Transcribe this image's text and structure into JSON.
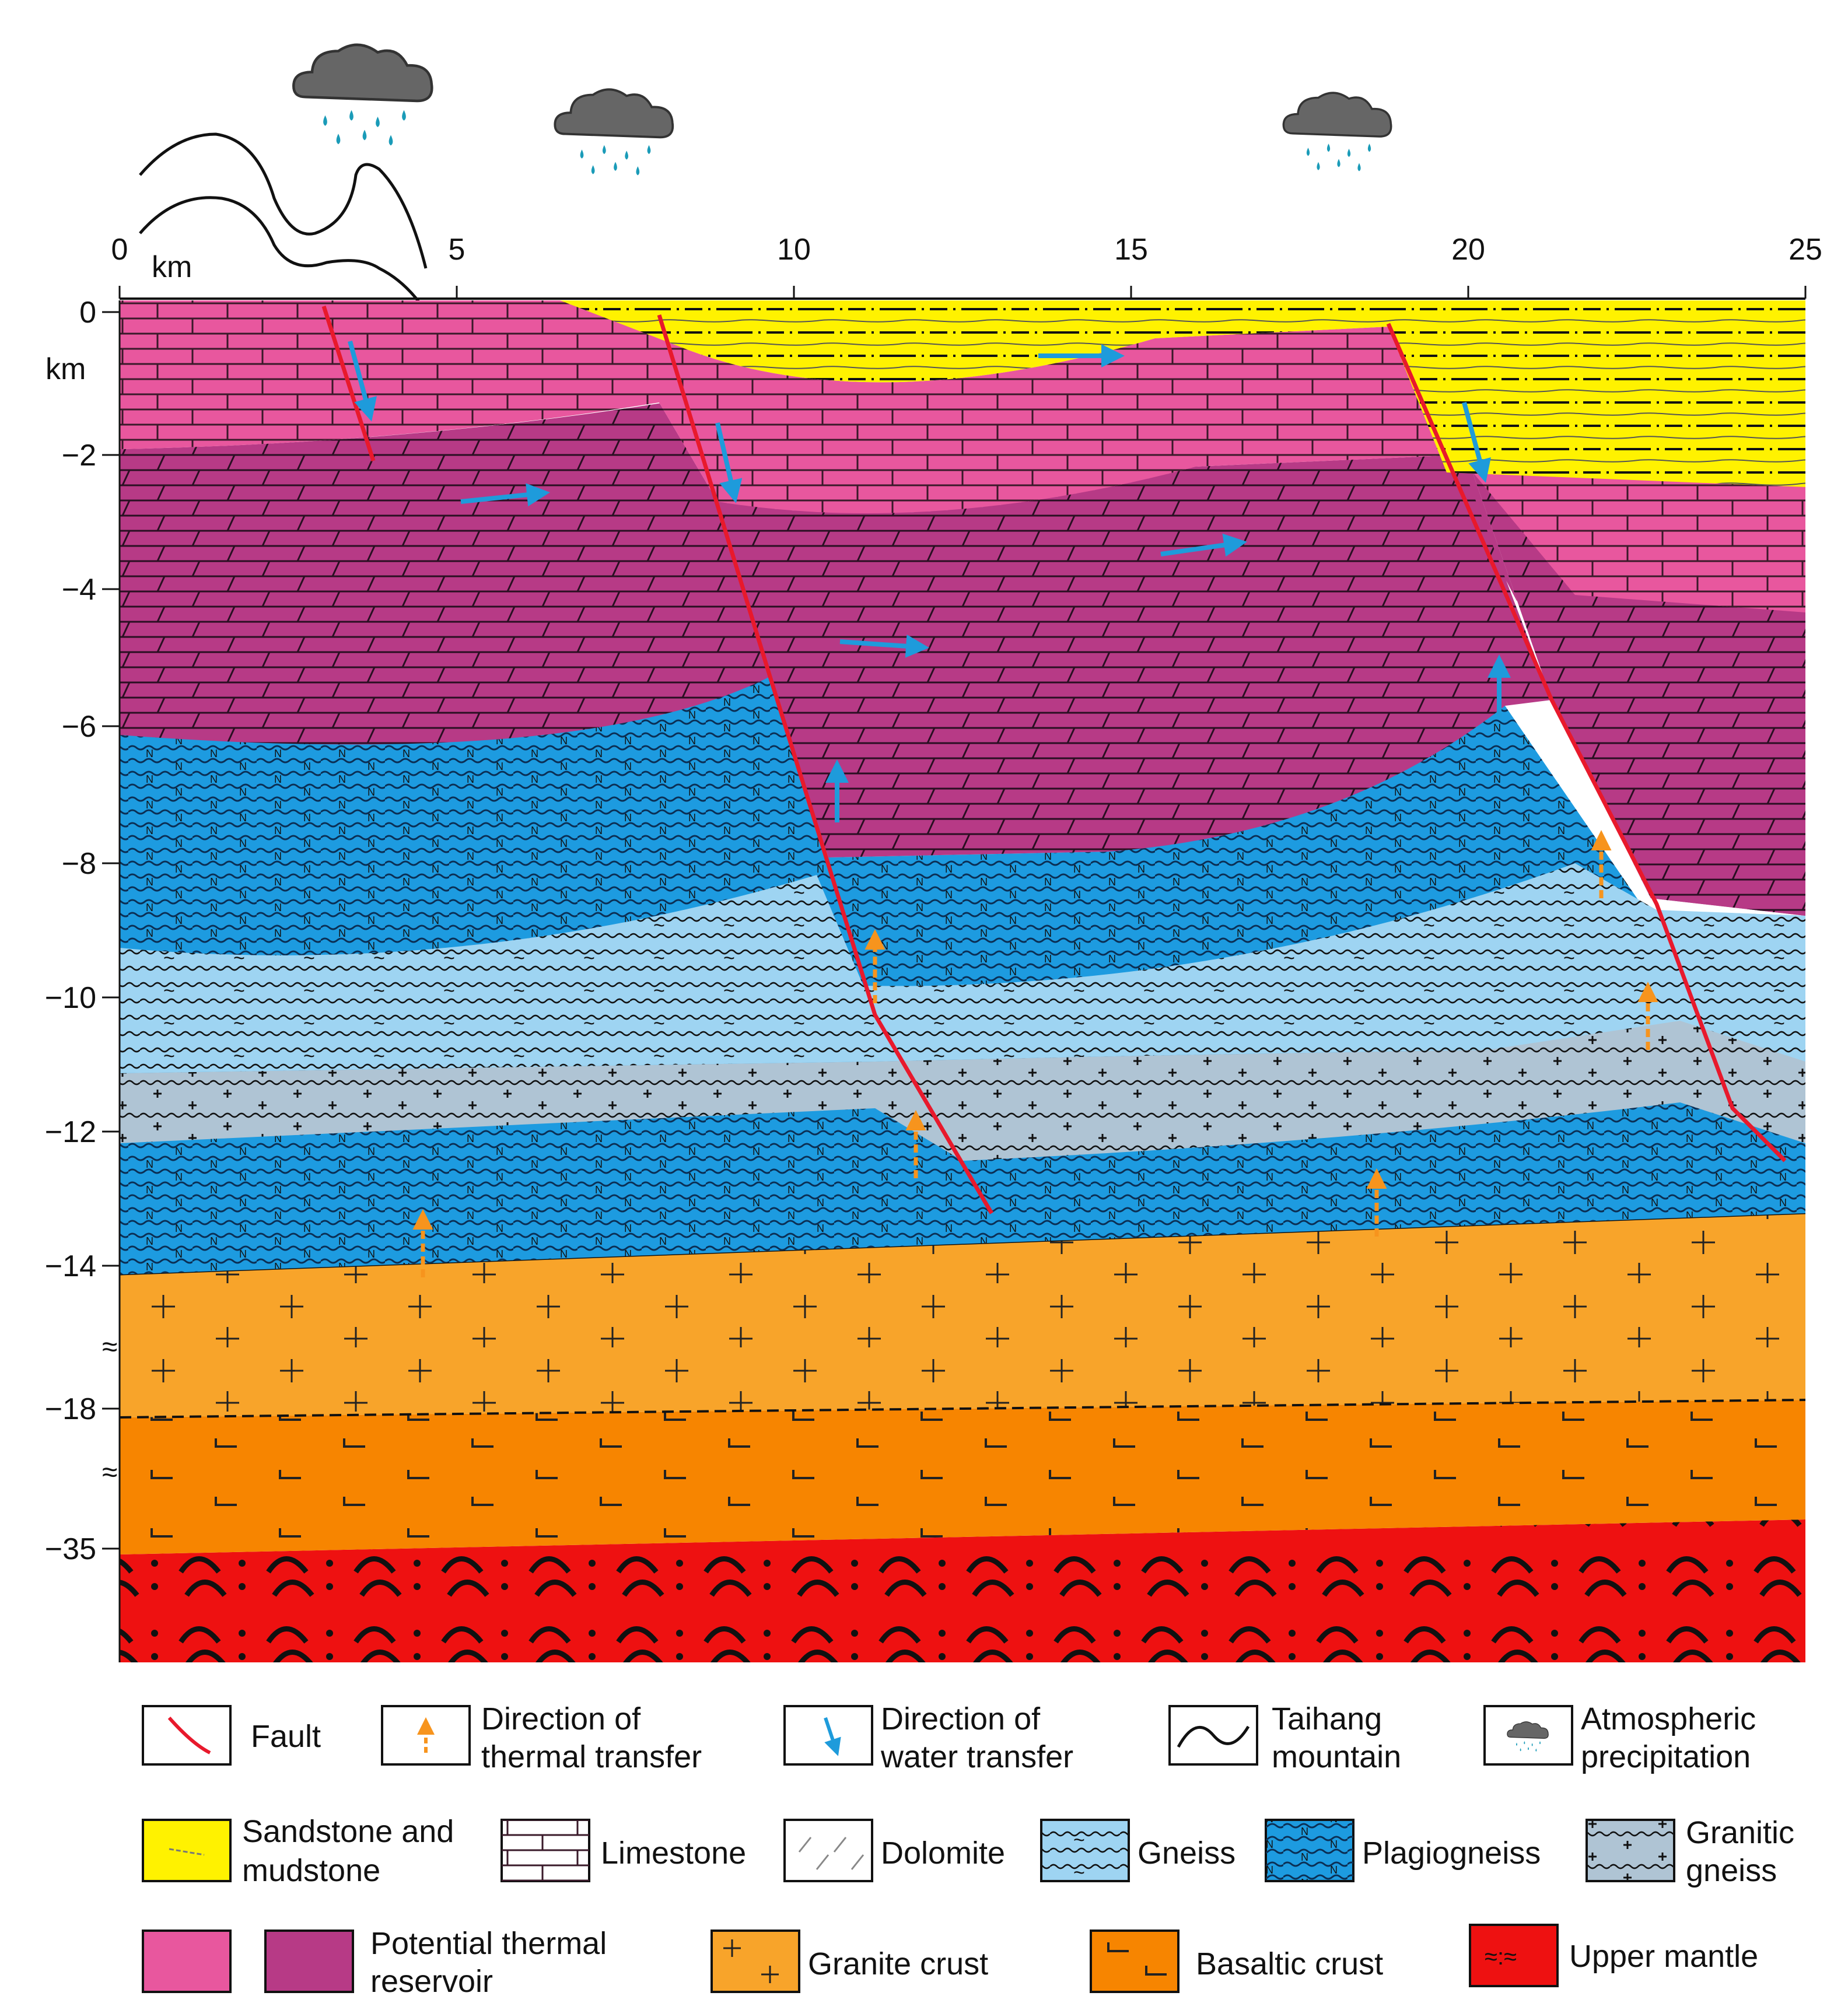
{
  "x_axis": {
    "ticks": [
      "0",
      "5",
      "10",
      "15",
      "20",
      "25"
    ],
    "unit": "km"
  },
  "y_axis": {
    "ticks": [
      "0",
      "−2",
      "−4",
      "−6",
      "−8",
      "−10",
      "−12",
      "−14",
      "−18",
      "−35"
    ],
    "unit": "km"
  },
  "legend": [
    {
      "id": "fault",
      "lines": [
        "Fault"
      ]
    },
    {
      "id": "thermal",
      "lines": [
        "Direction of",
        "thermal transfer"
      ]
    },
    {
      "id": "water",
      "lines": [
        "Direction of",
        "water transfer"
      ]
    },
    {
      "id": "taihang",
      "lines": [
        "Taihang",
        "mountain"
      ]
    },
    {
      "id": "precip",
      "lines": [
        "Atmospheric",
        "precipitation"
      ]
    },
    {
      "id": "sandstone",
      "lines": [
        "Sandstone and",
        "mudstone"
      ]
    },
    {
      "id": "limestone",
      "lines": [
        "Limestone"
      ]
    },
    {
      "id": "dolomite",
      "lines": [
        "Dolomite"
      ]
    },
    {
      "id": "gneiss",
      "lines": [
        "Gneiss"
      ]
    },
    {
      "id": "plagiogneiss",
      "lines": [
        "Plagiogneiss"
      ]
    },
    {
      "id": "granitic-gneiss",
      "lines": [
        "Granitic",
        "gneiss"
      ]
    },
    {
      "id": "reservoir",
      "lines": [
        "Potential thermal",
        "reservoir"
      ]
    },
    {
      "id": "granite",
      "lines": [
        "Granite crust"
      ]
    },
    {
      "id": "basalt",
      "lines": [
        "Basaltic crust"
      ]
    },
    {
      "id": "mantle",
      "lines": [
        "Upper mantle"
      ]
    }
  ],
  "colors": {
    "sandstone": "#FFF200",
    "limestone": "#E8579E",
    "dolomite": "#B73A86",
    "plagiogneiss": "#1D9BE0",
    "gneiss": "#9ED4F2",
    "granitic_gneiss": "#AFC4D4",
    "granite": "#F8A42A",
    "basalt": "#F78500",
    "mantle": "#EE1111",
    "fault": "#E8192C",
    "thermal_arrow": "#F7941D",
    "water_arrow": "#1E9BDB"
  }
}
